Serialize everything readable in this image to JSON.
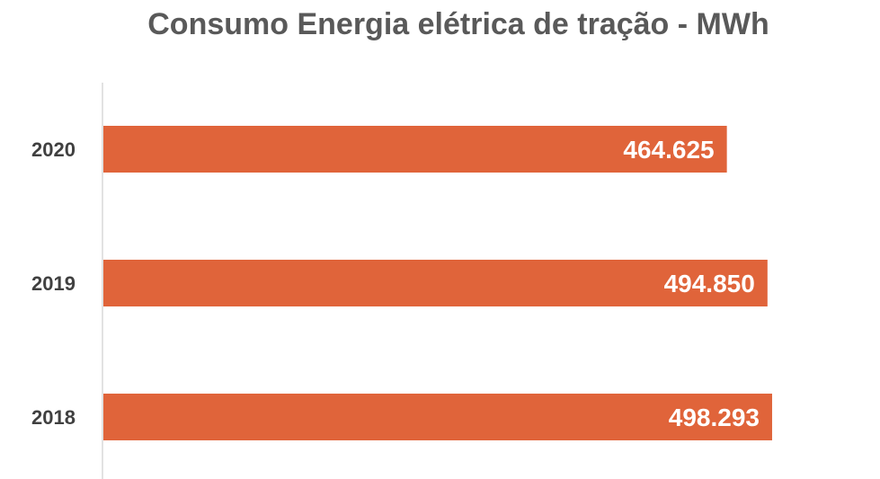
{
  "chart_data": {
    "type": "bar",
    "orientation": "horizontal",
    "title": "Consumo Energia elétrica de tração - MWh",
    "categories": [
      "2020",
      "2019",
      "2018"
    ],
    "values": [
      464625,
      494850,
      498293
    ],
    "value_labels": [
      "464.625",
      "494.850",
      "498.293"
    ],
    "xlim": [
      0,
      505000
    ],
    "grid": false,
    "legend": "none",
    "bar_color": "#E0643A"
  }
}
